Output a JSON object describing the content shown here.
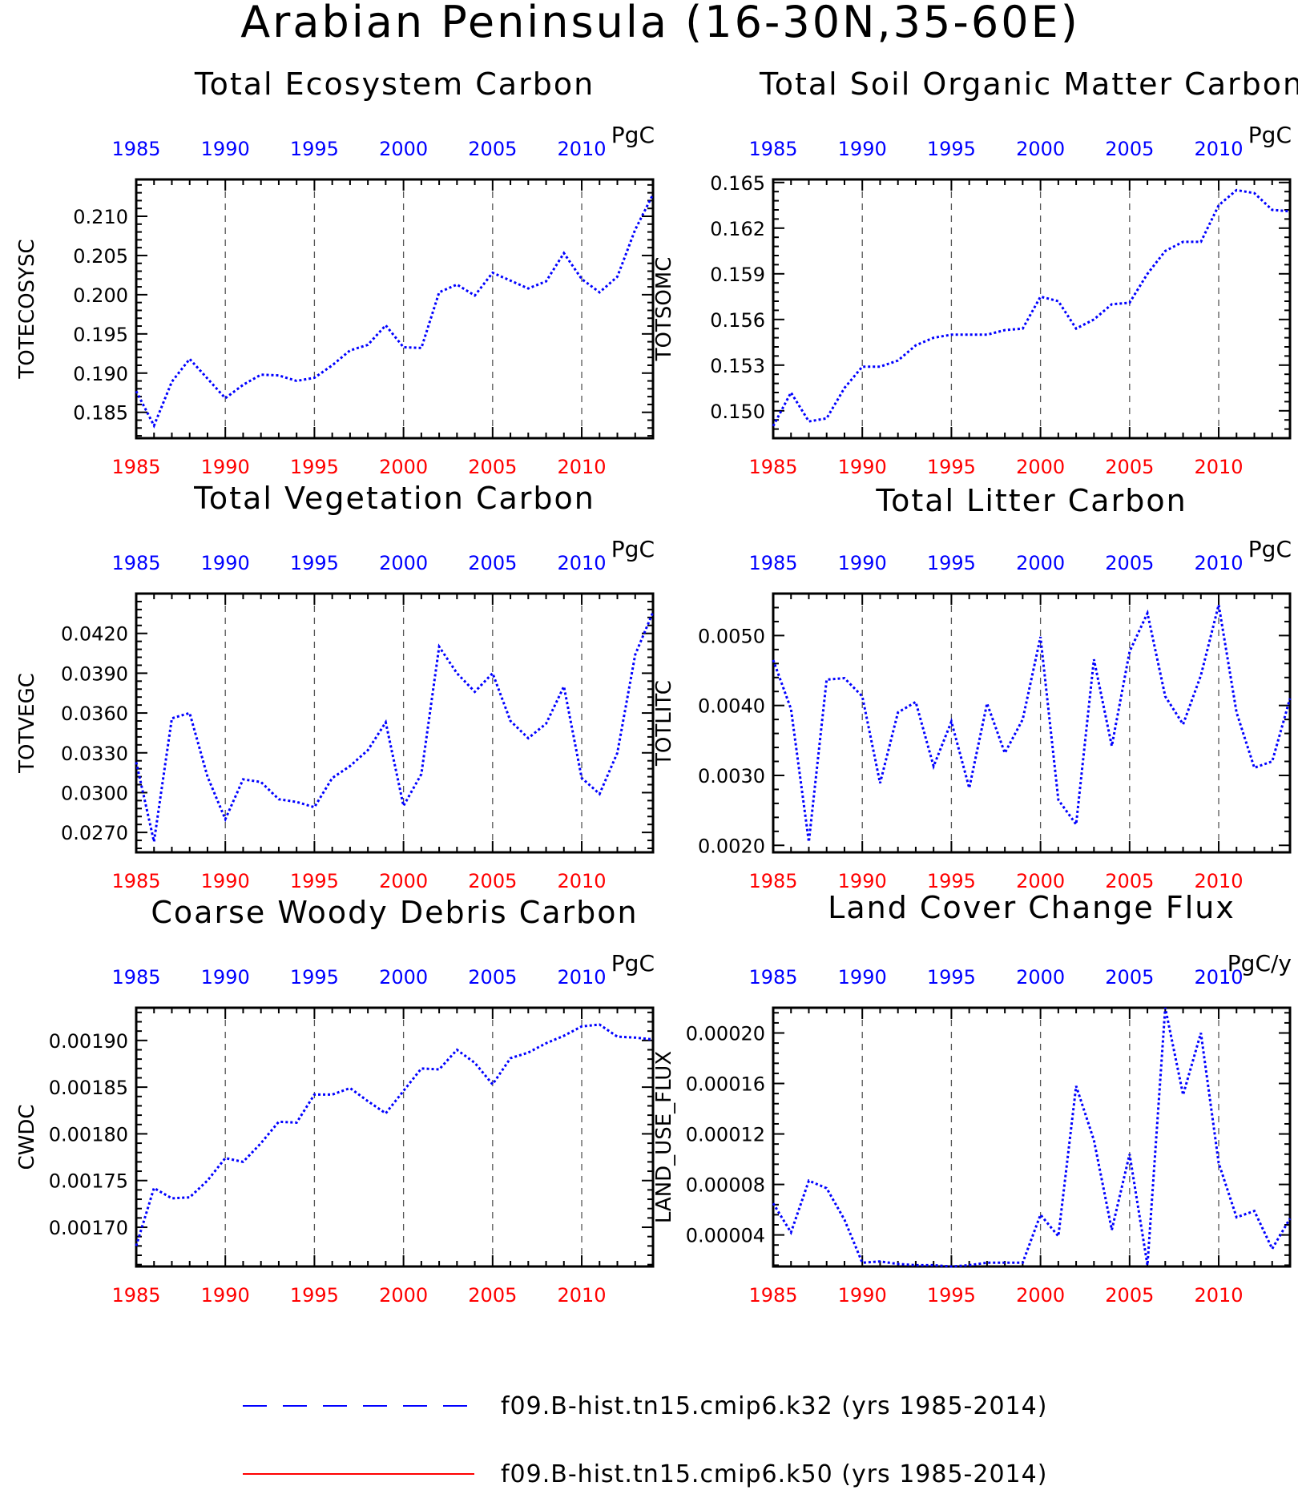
{
  "suptitle": "Arabian Peninsula (16-30N,35-60E)",
  "colors": {
    "k32": "#0000ff",
    "k50": "#ff0000",
    "top_ticks": "#0000ff",
    "bottom_ticks": "#ff0000"
  },
  "legend": [
    {
      "label": "f09.B-hist.tn15.cmip6.k32 (yrs 1985-2014)",
      "color": "#0000ff",
      "style": "dashed"
    },
    {
      "label": "f09.B-hist.tn15.cmip6.k50 (yrs 1985-2014)",
      "color": "#ff0000",
      "style": "solid"
    }
  ],
  "chart_data": [
    {
      "type": "line",
      "title": "Total Ecosystem Carbon",
      "ylabel": "TOTECOSYSC",
      "units": "PgC",
      "xlim": [
        1985,
        2014
      ],
      "ylim": [
        0.1817,
        0.2147
      ],
      "xticks": [
        "1985",
        "1990",
        "1995",
        "2000",
        "2005",
        "2010"
      ],
      "yticks": [
        "0.185",
        "0.190",
        "0.195",
        "0.200",
        "0.205",
        "0.210"
      ],
      "grid": "vertical dashed",
      "x": [
        1985,
        1986,
        1987,
        1988,
        1989,
        1990,
        1991,
        1992,
        1993,
        1994,
        1995,
        1996,
        1997,
        1998,
        1999,
        2000,
        2001,
        2002,
        2003,
        2004,
        2005,
        2006,
        2007,
        2008,
        2009,
        2010,
        2011,
        2012,
        2013,
        2014
      ],
      "series": [
        {
          "name": "f09.B-hist.tn15.cmip6.k32",
          "values": [
            0.1877,
            0.1833,
            0.1889,
            0.1918,
            0.1893,
            0.1868,
            0.1885,
            0.1898,
            0.1897,
            0.189,
            0.1894,
            0.191,
            0.1929,
            0.1936,
            0.1961,
            0.1933,
            0.1932,
            0.2003,
            0.2013,
            0.1999,
            0.2028,
            0.2018,
            0.2008,
            0.2017,
            0.2053,
            0.202,
            0.2003,
            0.2023,
            0.2083,
            0.2128
          ]
        }
      ]
    },
    {
      "type": "line",
      "title": "Total Soil Organic Matter Carbon",
      "ylabel": "TOTSOMC",
      "units": "PgC",
      "xlim": [
        1985,
        2014
      ],
      "ylim": [
        0.1482,
        0.1652
      ],
      "xticks": [
        "1985",
        "1990",
        "1995",
        "2000",
        "2005",
        "2010"
      ],
      "yticks": [
        "0.150",
        "0.153",
        "0.156",
        "0.159",
        "0.162",
        "0.165"
      ],
      "grid": "vertical dashed",
      "x": [
        1985,
        1986,
        1987,
        1988,
        1989,
        1990,
        1991,
        1992,
        1993,
        1994,
        1995,
        1996,
        1997,
        1998,
        1999,
        2000,
        2001,
        2002,
        2003,
        2004,
        2005,
        2006,
        2007,
        2008,
        2009,
        2010,
        2011,
        2012,
        2013,
        2014
      ],
      "series": [
        {
          "name": "f09.B-hist.tn15.cmip6.k32",
          "values": [
            0.149,
            0.1512,
            0.1493,
            0.1495,
            0.1515,
            0.1529,
            0.1529,
            0.1533,
            0.1543,
            0.1548,
            0.155,
            0.155,
            0.155,
            0.1553,
            0.1554,
            0.1575,
            0.1572,
            0.1554,
            0.156,
            0.157,
            0.1571,
            0.159,
            0.1605,
            0.1611,
            0.1611,
            0.1635,
            0.1645,
            0.1643,
            0.1632,
            0.1631
          ]
        }
      ]
    },
    {
      "type": "line",
      "title": "Total Vegetation Carbon",
      "ylabel": "TOTVEGC",
      "units": "PgC",
      "xlim": [
        1985,
        2014
      ],
      "ylim": [
        0.0255,
        0.045
      ],
      "xticks": [
        "1985",
        "1990",
        "1995",
        "2000",
        "2005",
        "2010"
      ],
      "yticks": [
        "0.0270",
        "0.0300",
        "0.0330",
        "0.0360",
        "0.0390",
        "0.0420"
      ],
      "grid": "vertical dashed",
      "x": [
        1985,
        1986,
        1987,
        1988,
        1989,
        1990,
        1991,
        1992,
        1993,
        1994,
        1995,
        1996,
        1997,
        1998,
        1999,
        2000,
        2001,
        2002,
        2003,
        2004,
        2005,
        2006,
        2007,
        2008,
        2009,
        2010,
        2011,
        2012,
        2013,
        2014
      ],
      "series": [
        {
          "name": "f09.B-hist.tn15.cmip6.k32",
          "values": [
            0.0323,
            0.0263,
            0.0356,
            0.036,
            0.0312,
            0.028,
            0.031,
            0.0308,
            0.0295,
            0.0293,
            0.0289,
            0.0311,
            0.032,
            0.0332,
            0.0353,
            0.029,
            0.0314,
            0.041,
            0.039,
            0.0376,
            0.039,
            0.0354,
            0.0341,
            0.0352,
            0.038,
            0.0311,
            0.0299,
            0.033,
            0.0404,
            0.0436
          ]
        }
      ]
    },
    {
      "type": "line",
      "title": "Total Litter Carbon",
      "ylabel": "TOTLITC",
      "units": "PgC",
      "xlim": [
        1985,
        2014
      ],
      "ylim": [
        0.0019,
        0.0056
      ],
      "xticks": [
        "1985",
        "1990",
        "1995",
        "2000",
        "2005",
        "2010"
      ],
      "yticks": [
        "0.0020",
        "0.0030",
        "0.0040",
        "0.0050"
      ],
      "grid": "vertical dashed",
      "x": [
        1985,
        1986,
        1987,
        1988,
        1989,
        1990,
        1991,
        1992,
        1993,
        1994,
        1995,
        1996,
        1997,
        1998,
        1999,
        2000,
        2001,
        2002,
        2003,
        2004,
        2005,
        2006,
        2007,
        2008,
        2009,
        2010,
        2011,
        2012,
        2013,
        2014
      ],
      "series": [
        {
          "name": "f09.B-hist.tn15.cmip6.k32",
          "values": [
            0.00465,
            0.00395,
            0.00205,
            0.00437,
            0.00439,
            0.00413,
            0.00289,
            0.0039,
            0.00405,
            0.00313,
            0.00377,
            0.00282,
            0.00403,
            0.00332,
            0.0038,
            0.00498,
            0.00265,
            0.0023,
            0.00466,
            0.00342,
            0.00477,
            0.00532,
            0.00413,
            0.00373,
            0.00443,
            0.00544,
            0.0039,
            0.00311,
            0.0032,
            0.0041
          ]
        }
      ]
    },
    {
      "type": "line",
      "title": "Coarse Woody Debris Carbon",
      "ylabel": "CWDC",
      "units": "PgC",
      "xlim": [
        1985,
        2014
      ],
      "ylim": [
        0.001658,
        0.001935
      ],
      "xticks": [
        "1985",
        "1990",
        "1995",
        "2000",
        "2005",
        "2010"
      ],
      "yticks": [
        "0.00170",
        "0.00175",
        "0.00180",
        "0.00185",
        "0.00190"
      ],
      "grid": "vertical dashed",
      "x": [
        1985,
        1986,
        1987,
        1988,
        1989,
        1990,
        1991,
        1992,
        1993,
        1994,
        1995,
        1996,
        1997,
        1998,
        1999,
        2000,
        2001,
        2002,
        2003,
        2004,
        2005,
        2006,
        2007,
        2008,
        2009,
        2010,
        2011,
        2012,
        2013,
        2014
      ],
      "series": [
        {
          "name": "f09.B-hist.tn15.cmip6.k32",
          "values": [
            0.00168,
            0.001742,
            0.001731,
            0.001732,
            0.00175,
            0.001774,
            0.00177,
            0.00179,
            0.001813,
            0.001812,
            0.001842,
            0.001842,
            0.001849,
            0.001835,
            0.001822,
            0.001846,
            0.00187,
            0.001869,
            0.00189,
            0.001876,
            0.001853,
            0.001881,
            0.001887,
            0.001897,
            0.001905,
            0.001915,
            0.001917,
            0.001904,
            0.001903,
            0.001901
          ]
        }
      ]
    },
    {
      "type": "line",
      "title": "Land Cover Change Flux",
      "ylabel": "LAND_USE_FLUX",
      "units": "PgC/y",
      "xlim": [
        1985,
        2014
      ],
      "ylim": [
        1.5e-05,
        0.00022
      ],
      "xticks": [
        "1985",
        "1990",
        "1995",
        "2000",
        "2005",
        "2010"
      ],
      "yticks": [
        "0.00004",
        "0.00008",
        "0.00012",
        "0.00016",
        "0.00020"
      ],
      "grid": "vertical dashed",
      "x": [
        1985,
        1986,
        1987,
        1988,
        1989,
        1990,
        1991,
        1992,
        1993,
        1994,
        1995,
        1996,
        1997,
        1998,
        1999,
        2000,
        2001,
        2002,
        2003,
        2004,
        2005,
        2006,
        2007,
        2008,
        2009,
        2010,
        2011,
        2012,
        2013,
        2014
      ],
      "series": [
        {
          "name": "f09.B-hist.tn15.cmip6.k32",
          "values": [
            6.5e-05,
            4.2e-05,
            8.3e-05,
            7.7e-05,
            5.2e-05,
            1.8e-05,
            1.9e-05,
            1.7e-05,
            1.6e-05,
            1.6e-05,
            1.5e-05,
            1.6e-05,
            1.8e-05,
            1.8e-05,
            1.8e-05,
            5.6e-05,
            3.9e-05,
            0.000158,
            0.000115,
            4.4e-05,
            0.000104,
            1.6e-05,
            0.00022,
            0.000151,
            0.0002,
            9.7e-05,
            5.4e-05,
            5.9e-05,
            2.9e-05,
            5.3e-05
          ]
        }
      ]
    }
  ]
}
